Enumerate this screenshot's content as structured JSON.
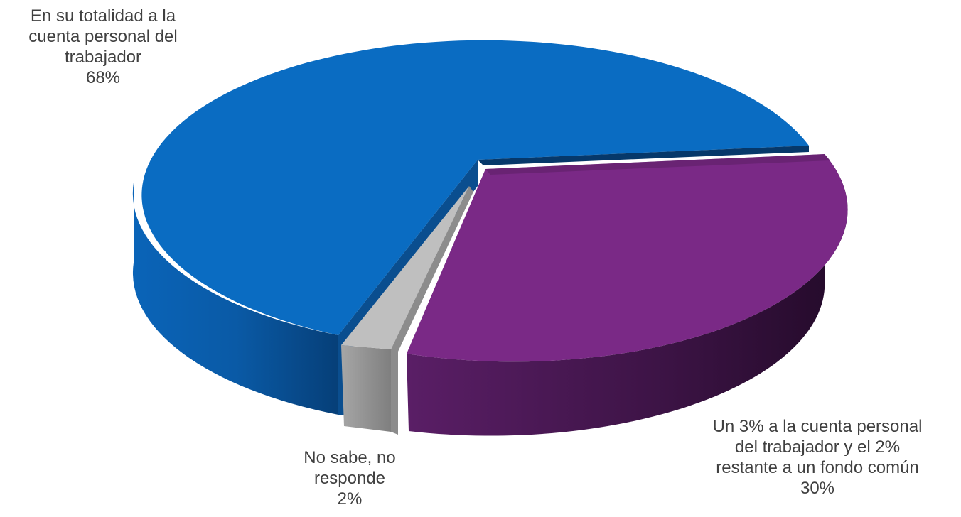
{
  "chart_data": {
    "type": "pie",
    "style": "3d-exploded",
    "slices": [
      {
        "label_lines": [
          "En su totalidad a la",
          "cuenta personal del",
          "trabajador"
        ],
        "value": 68,
        "value_label": "68%",
        "color": "#0A6CC2"
      },
      {
        "label_lines": [
          "Un 3% a la cuenta personal",
          "del trabajador y el 2%",
          "restante a un fondo común"
        ],
        "value": 30,
        "value_label": "30%",
        "color": "#7A2986"
      },
      {
        "label_lines": [
          "No sabe, no",
          "responde"
        ],
        "value": 2,
        "value_label": "2%",
        "color": "#BFBFBF"
      }
    ]
  }
}
